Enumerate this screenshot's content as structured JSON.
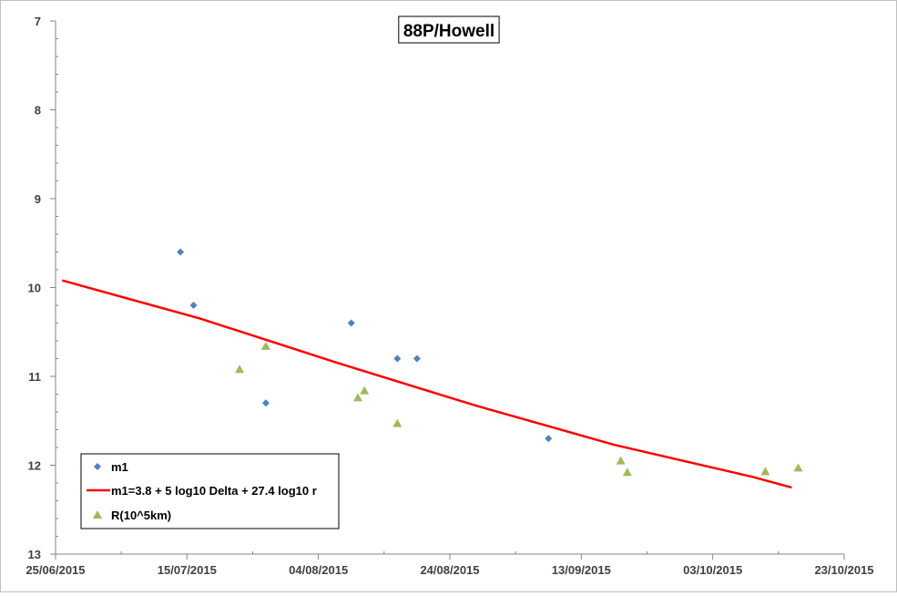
{
  "chart_data": {
    "type": "scatter",
    "title": "88P/Howell",
    "xlabel": "",
    "ylabel": "",
    "xlim": [
      "2015-06-25",
      "2015-10-23"
    ],
    "ylim": [
      13,
      7
    ],
    "y_inverted": true,
    "y_ticks": [
      "7",
      "8",
      "9",
      "10",
      "11",
      "12",
      "13"
    ],
    "x_ticks": [
      "25/06/2015",
      "15/07/2015",
      "04/08/2015",
      "24/08/2015",
      "13/09/2015",
      "03/10/2015",
      "23/10/2015"
    ],
    "grid": false,
    "legend_position": "bottom-left",
    "series": [
      {
        "name": "m1",
        "marker": "diamond",
        "color": "#4f81bd",
        "points": [
          {
            "x": "2015-07-14",
            "y": 9.6
          },
          {
            "x": "2015-07-16",
            "y": 10.2
          },
          {
            "x": "2015-07-27",
            "y": 11.3
          },
          {
            "x": "2015-08-09",
            "y": 10.4
          },
          {
            "x": "2015-08-16",
            "y": 10.8
          },
          {
            "x": "2015-08-19",
            "y": 10.8
          },
          {
            "x": "2015-09-08",
            "y": 11.7
          }
        ]
      },
      {
        "name": "m1=3.8 + 5 log10 Delta + 27.4 log10 r",
        "type": "line",
        "color": "#ff0000",
        "points": [
          {
            "x": "2015-06-26",
            "y": 9.92
          },
          {
            "x": "2015-07-17",
            "y": 10.35
          },
          {
            "x": "2015-08-07",
            "y": 10.85
          },
          {
            "x": "2015-08-28",
            "y": 11.33
          },
          {
            "x": "2015-09-18",
            "y": 11.77
          },
          {
            "x": "2015-10-09",
            "y": 12.13
          },
          {
            "x": "2015-10-15",
            "y": 12.25
          }
        ]
      },
      {
        "name": "R(10^5km)",
        "marker": "triangle",
        "color": "#9bbb59",
        "points": [
          {
            "x": "2015-07-23",
            "y": 10.92
          },
          {
            "x": "2015-07-27",
            "y": 10.66
          },
          {
            "x": "2015-08-10",
            "y": 11.24
          },
          {
            "x": "2015-08-11",
            "y": 11.16
          },
          {
            "x": "2015-08-16",
            "y": 11.53
          },
          {
            "x": "2015-09-19",
            "y": 11.95
          },
          {
            "x": "2015-09-20",
            "y": 12.08
          },
          {
            "x": "2015-10-11",
            "y": 12.07
          },
          {
            "x": "2015-10-16",
            "y": 12.03
          }
        ]
      }
    ]
  }
}
